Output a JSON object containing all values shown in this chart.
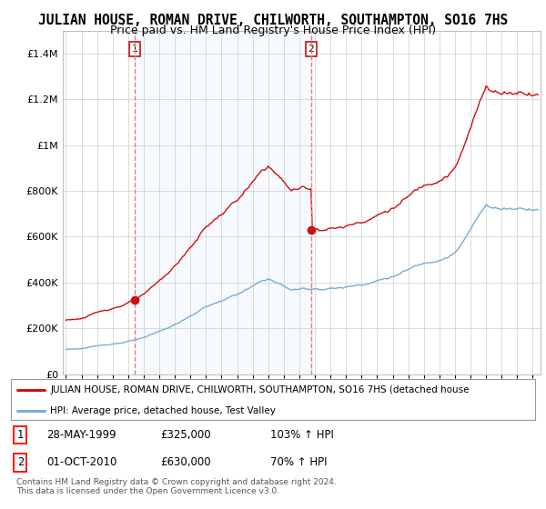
{
  "title": "JULIAN HOUSE, ROMAN DRIVE, CHILWORTH, SOUTHAMPTON, SO16 7HS",
  "subtitle": "Price paid vs. HM Land Registry's House Price Index (HPI)",
  "legend_line1": "JULIAN HOUSE, ROMAN DRIVE, CHILWORTH, SOUTHAMPTON, SO16 7HS (detached house",
  "legend_line2": "HPI: Average price, detached house, Test Valley",
  "footnote1": "Contains HM Land Registry data © Crown copyright and database right 2024.",
  "footnote2": "This data is licensed under the Open Government Licence v3.0.",
  "sale1_label": "1",
  "sale1_date": "28-MAY-1999",
  "sale1_price": "£325,000",
  "sale1_hpi": "103% ↑ HPI",
  "sale2_label": "2",
  "sale2_date": "01-OCT-2010",
  "sale2_price": "£630,000",
  "sale2_hpi": "70% ↑ HPI",
  "hpi_color": "#7aadcf",
  "price_color": "#cc1111",
  "vline_color": "#e08080",
  "shade_color": "#ddeeff",
  "sale1_x": 1999.41,
  "sale1_y": 325000,
  "sale2_x": 2010.75,
  "sale2_y": 630000,
  "ylim": [
    0,
    1500000
  ],
  "xlim": [
    1994.8,
    2025.5
  ],
  "bg_color": "#ffffff",
  "grid_color": "#cccccc",
  "title_fontsize": 10.5,
  "subtitle_fontsize": 9
}
